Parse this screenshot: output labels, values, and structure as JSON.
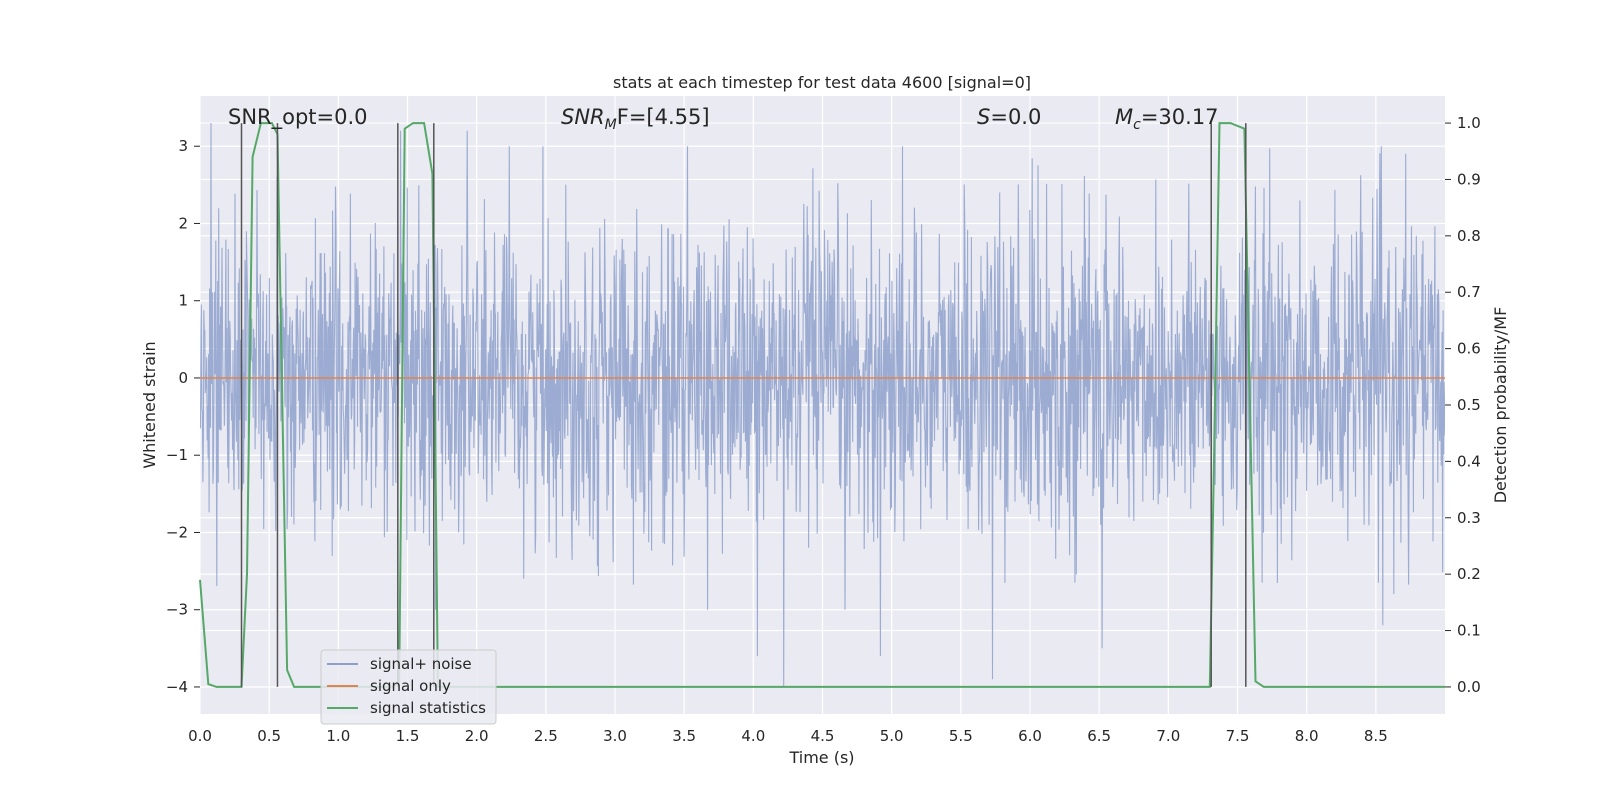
{
  "chart_data": {
    "type": "line",
    "title": "stats at each timestep for test data 4600 [signal=0]",
    "xlabel": "Time (s)",
    "ylabel_left": "Whitened strain",
    "ylabel_right": "Detection probability/MF",
    "xlim": [
      0.0,
      9.0
    ],
    "ylim_left": [
      -4.35,
      3.65
    ],
    "ylim_right": [
      -0.048,
      1.048
    ],
    "x_ticks": [
      "0.0",
      "0.5",
      "1.0",
      "1.5",
      "2.0",
      "2.5",
      "3.0",
      "3.5",
      "4.0",
      "4.5",
      "5.0",
      "5.5",
      "6.0",
      "6.5",
      "7.0",
      "7.5",
      "8.0",
      "8.5"
    ],
    "y_ticks_left": [
      "3",
      "2",
      "1",
      "0",
      "−1",
      "−2",
      "−3",
      "−4"
    ],
    "y_ticks_right": [
      "1.0",
      "0.9",
      "0.8",
      "0.7",
      "0.6",
      "0.5",
      "0.4",
      "0.3",
      "0.2",
      "0.1",
      "0.0"
    ],
    "grid": true,
    "annotations": {
      "snr_opt": "SNR_opt=0.0",
      "snr_mf_base": "SNR",
      "snr_mf_sub": "M",
      "snr_mf_rest": "F=[4.55]",
      "s_italic": "S",
      "s_rest": "=0.0",
      "mc_italic": "M",
      "mc_sub": "c",
      "mc_rest": "=30.17"
    },
    "legend": {
      "placement": "lower-left",
      "entries": [
        {
          "label": "signal+ noise",
          "color": "#8da0cb"
        },
        {
          "label": "signal only",
          "color": "#dd8452"
        },
        {
          "label": "signal statistics",
          "color": "#55a868"
        }
      ]
    },
    "series": [
      {
        "name": "signal+ noise",
        "axis": "left",
        "color": "#8da0cb",
        "description_values": "noise trace approx. within [-2.0, 2.0], peaks up to ~3.3 and down to ~-4.0",
        "sample_points": [
          {
            "x": 0.08,
            "y": 3.3
          },
          {
            "x": 1.45,
            "y": 3.2
          },
          {
            "x": 1.93,
            "y": 3.2
          },
          {
            "x": 4.03,
            "y": -3.6
          },
          {
            "x": 4.22,
            "y": -4.0
          },
          {
            "x": 4.92,
            "y": -3.6
          },
          {
            "x": 5.73,
            "y": -3.9
          },
          {
            "x": 6.52,
            "y": -3.5
          },
          {
            "x": 8.55,
            "y": -3.2
          }
        ]
      },
      {
        "name": "signal only",
        "axis": "left",
        "color": "#dd8452",
        "x": [
          0.0,
          9.0
        ],
        "y": [
          0.0,
          0.0
        ]
      },
      {
        "name": "signal statistics",
        "axis": "right",
        "color": "#55a868",
        "x": [
          0.0,
          0.06,
          0.12,
          0.3,
          0.34,
          0.38,
          0.44,
          0.52,
          0.56,
          0.63,
          0.68,
          1.4,
          1.44,
          1.48,
          1.54,
          1.62,
          1.68,
          1.72,
          7.3,
          7.33,
          7.37,
          7.45,
          7.55,
          7.63,
          7.69,
          9.0
        ],
        "y": [
          0.19,
          0.005,
          0.0,
          0.0,
          0.2,
          0.94,
          1.0,
          1.0,
          0.98,
          0.03,
          0.0,
          0.0,
          0.01,
          0.99,
          1.0,
          1.0,
          0.91,
          0.0,
          0.0,
          0.4,
          1.0,
          1.0,
          0.99,
          0.01,
          0.0,
          0.0
        ]
      }
    ],
    "vertical_markers": [
      0.3,
      0.56,
      1.43,
      1.69,
      7.31,
      7.56
    ]
  }
}
